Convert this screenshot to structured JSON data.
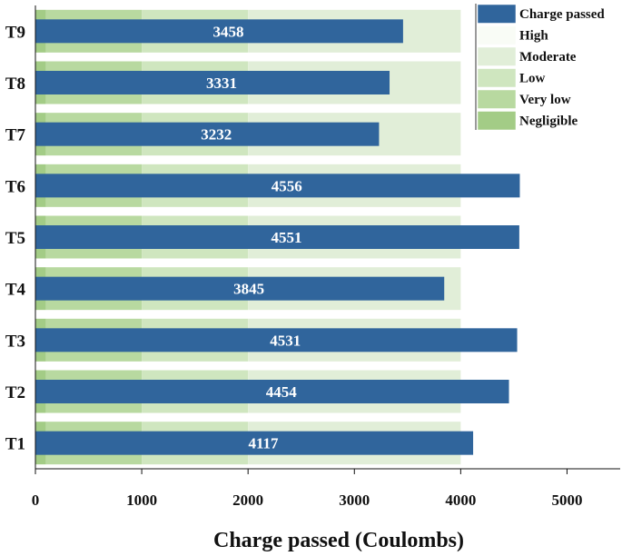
{
  "chart_data": {
    "type": "bar",
    "orientation": "horizontal",
    "categories": [
      "T1",
      "T2",
      "T3",
      "T4",
      "T5",
      "T6",
      "T7",
      "T8",
      "T9"
    ],
    "series": [
      {
        "name": "Charge passed",
        "values": [
          4117,
          4454,
          4531,
          3845,
          4551,
          4556,
          3232,
          3331,
          3458
        ],
        "color": "#30659c"
      }
    ],
    "data_labels": [
      "4117",
      "4454",
      "4531",
      "3845",
      "4551",
      "4556",
      "3232",
      "3331",
      "3458"
    ],
    "xlabel": "Charge passed (Coulombs)",
    "xlim": [
      0,
      5500
    ],
    "xticks": [
      0,
      1000,
      2000,
      3000,
      4000,
      5000
    ],
    "xtick_labels": [
      "0",
      "1000",
      "2000",
      "3000",
      "4000",
      "5000"
    ],
    "background_bands": [
      {
        "name": "Negligible",
        "from": 0,
        "to": 100,
        "color": "#a3cc86"
      },
      {
        "name": "Very low",
        "from": 100,
        "to": 1000,
        "color": "#b8d9a0"
      },
      {
        "name": "Low",
        "from": 1000,
        "to": 2000,
        "color": "#cfe6bf"
      },
      {
        "name": "Moderate",
        "from": 2000,
        "to": 4000,
        "color": "#e1eed8"
      },
      {
        "name": "High",
        "from": 4000,
        "to": 5500,
        "color": "#f9fcf6"
      }
    ],
    "legend": {
      "position": "top-right",
      "entries": [
        {
          "label": "Charge passed",
          "color": "#30659c"
        },
        {
          "label": "High",
          "color": "#f9fcf6"
        },
        {
          "label": "Moderate",
          "color": "#e1eed8"
        },
        {
          "label": "Low",
          "color": "#cfe6bf"
        },
        {
          "label": "Very low",
          "color": "#b8d9a0"
        },
        {
          "label": "Negligible",
          "color": "#a3cc86"
        }
      ]
    },
    "grid": false
  }
}
